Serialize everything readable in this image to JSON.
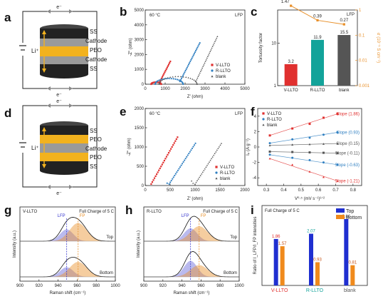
{
  "panel_labels": [
    "a",
    "b",
    "c",
    "d",
    "e",
    "f",
    "g",
    "h",
    "i"
  ],
  "schematic_top": {
    "electron_top": "e⁻",
    "electron_bottom": "e⁻",
    "ion": "Li⁺",
    "layers": [
      "SS",
      "Cathode",
      "PEO",
      "Cathode",
      "SS"
    ]
  },
  "schematic_bottom": {
    "electron_top": "e⁻",
    "electron_bottom": "e⁻",
    "ion": "Li⁺",
    "layers": [
      "SS",
      "PEO",
      "Cathode",
      "PEO",
      "SS"
    ]
  },
  "chart_data": [
    {
      "panel": "b",
      "type": "scatter",
      "corner_label": "LFP",
      "temp": "60 °C",
      "xlabel": "Z' (ohm)",
      "ylabel": "-Z'' (ohm)",
      "xticks": [
        "0",
        "1000",
        "2000",
        "3000",
        "4000",
        "5000"
      ],
      "yticks": [
        "0",
        "1000",
        "2000",
        "3000",
        "4000",
        "5000"
      ],
      "xlim": [
        0,
        5000
      ],
      "ylim": [
        0,
        5000
      ],
      "series": [
        {
          "name": "V-LLTO",
          "color": "#e0302f"
        },
        {
          "name": "R-LLTO",
          "color": "#2f7fc1"
        },
        {
          "name": "blank",
          "color": "#555555"
        }
      ]
    },
    {
      "panel": "c",
      "type": "bar",
      "corner_label": "LFP",
      "categories": [
        "V-LLTO",
        "R-LLTO",
        "blank"
      ],
      "ylabel": "Tortuosity factor",
      "y2label": "σ (10⁻⁵ S cm⁻¹)",
      "yticks": [
        "1",
        "10"
      ],
      "y2ticks": [
        "1",
        "0.1",
        "0.01",
        "0.001"
      ],
      "ylim": [
        1,
        60
      ],
      "y2lim": [
        0.001,
        1
      ],
      "bar_values": [
        3.2,
        11.9,
        15.5
      ],
      "bar_labels": [
        "3.2",
        "11.9",
        "15.5"
      ],
      "bar_colors": [
        "#e0302f",
        "#13a39a",
        "#555555"
      ],
      "line_values": [
        1.47,
        0.39,
        0.27
      ],
      "line_labels": [
        "1.47",
        "0.39",
        "0.27"
      ],
      "line_color": "#e8902a"
    },
    {
      "panel": "e",
      "type": "scatter",
      "corner_label": "LFP",
      "temp": "60 °C",
      "xlabel": "Z' (ohm)",
      "ylabel": "-Z'' (ohm)",
      "xticks": [
        "0",
        "500",
        "1000",
        "1500",
        "2000"
      ],
      "yticks": [
        "0",
        "500",
        "1000",
        "1500",
        "2000"
      ],
      "xlim": [
        0,
        2000
      ],
      "ylim": [
        0,
        2000
      ],
      "series": [
        {
          "name": "V-LLTO",
          "color": "#e0302f"
        },
        {
          "name": "R-LLTO",
          "color": "#2f7fc1"
        },
        {
          "name": "blank",
          "color": "#555555"
        }
      ]
    },
    {
      "panel": "f",
      "type": "scatter",
      "xlabel": "V⁰·⁵ (mV s⁻¹)¹ᐟ²",
      "ylabel": "Iₚ (A g⁻¹)",
      "xticks": [
        "0.3",
        "0.4",
        "0.5",
        "0.6",
        "0.7",
        "0.8"
      ],
      "yticks": [
        "-4",
        "-2",
        "0",
        "2",
        "4"
      ],
      "xlim": [
        0.25,
        0.85
      ],
      "ylim": [
        -5,
        5
      ],
      "x": [
        0.32,
        0.45,
        0.55,
        0.63,
        0.71
      ],
      "series": [
        {
          "name": "V-LLTO",
          "color": "#e0302f",
          "slope_label": "Slope (1.86)",
          "values": [
            1.5,
            2.4,
            3.0,
            3.8,
            4.3
          ]
        },
        {
          "name": "R-LLTO",
          "color": "#2f7fc1",
          "slope_label": "Slope (0.93)",
          "values": [
            0.5,
            1.0,
            1.2,
            1.6,
            1.9
          ]
        },
        {
          "name": "blank",
          "color": "#555555",
          "slope_label": "Slope (0.15)",
          "values": [
            0.2,
            0.3,
            0.35,
            0.4,
            0.45
          ]
        },
        {
          "name": "",
          "color": "#555555",
          "slope_label": "Slope (-0.11)",
          "values": [
            -0.6,
            -0.65,
            -0.7,
            -0.75,
            -0.8
          ]
        },
        {
          "name": "",
          "color": "#2f7fc1",
          "slope_label": "Slope (-0.63)",
          "values": [
            -1.0,
            -1.4,
            -1.7,
            -2.0,
            -2.3
          ]
        },
        {
          "name": "",
          "color": "#e0302f",
          "slope_label": "Slope (-1.21)",
          "values": [
            -1.5,
            -2.3,
            -3.2,
            -3.9,
            -4.4
          ]
        }
      ]
    },
    {
      "panel": "g",
      "type": "area",
      "title": "V-LLTO",
      "corner_label": "Full Charge of 5 C",
      "xlabel": "Raman shift (cm⁻¹)",
      "ylabel": "Intensity (a.u.)",
      "xticks": [
        "900",
        "920",
        "940",
        "960",
        "980",
        "1000"
      ],
      "xlim": [
        900,
        1000
      ],
      "markers": [
        {
          "label": "LFP",
          "x": 949,
          "color": "#3a3acf"
        },
        {
          "label": "FP",
          "x": 961,
          "color": "#e8902a"
        }
      ],
      "traces": [
        "Top",
        "Bottom"
      ]
    },
    {
      "panel": "h",
      "type": "area",
      "title": "R-LLTO",
      "corner_label": "Full Charge of 5 C",
      "xlabel": "Raman shift (cm⁻¹)",
      "ylabel": "Intensity (a.u.)",
      "xticks": [
        "900",
        "920",
        "940",
        "960",
        "980",
        "1000"
      ],
      "xlim": [
        900,
        1000
      ],
      "markers": [
        {
          "label": "LFP",
          "x": 949,
          "color": "#3a3acf"
        },
        {
          "label": "FP",
          "x": 958,
          "color": "#e8902a"
        }
      ],
      "traces": [
        "Top",
        "Bottom"
      ]
    },
    {
      "panel": "i",
      "type": "bar",
      "title": "Full Charge of 5 C",
      "ylabel": "Ratio of I_LFP/I_FP intensities",
      "categories": [
        "V-LLTO",
        "R-LLTO",
        "blank"
      ],
      "category_colors": [
        "#e0302f",
        "#13a39a",
        "#555555"
      ],
      "legend": [
        {
          "name": "Top",
          "color": "#1f2fd0"
        },
        {
          "name": "Bottom",
          "color": "#f08a1c"
        }
      ],
      "ylim": [
        0,
        3.2
      ],
      "series": [
        {
          "name": "Top",
          "values": [
            1.86,
            2.07,
            2.66
          ],
          "labels": [
            "1.86",
            "2.07",
            "2.66"
          ]
        },
        {
          "name": "Bottom",
          "values": [
            1.57,
            0.93,
            0.81
          ],
          "labels": [
            "1.57",
            "0.93",
            "0.81"
          ]
        }
      ]
    }
  ]
}
